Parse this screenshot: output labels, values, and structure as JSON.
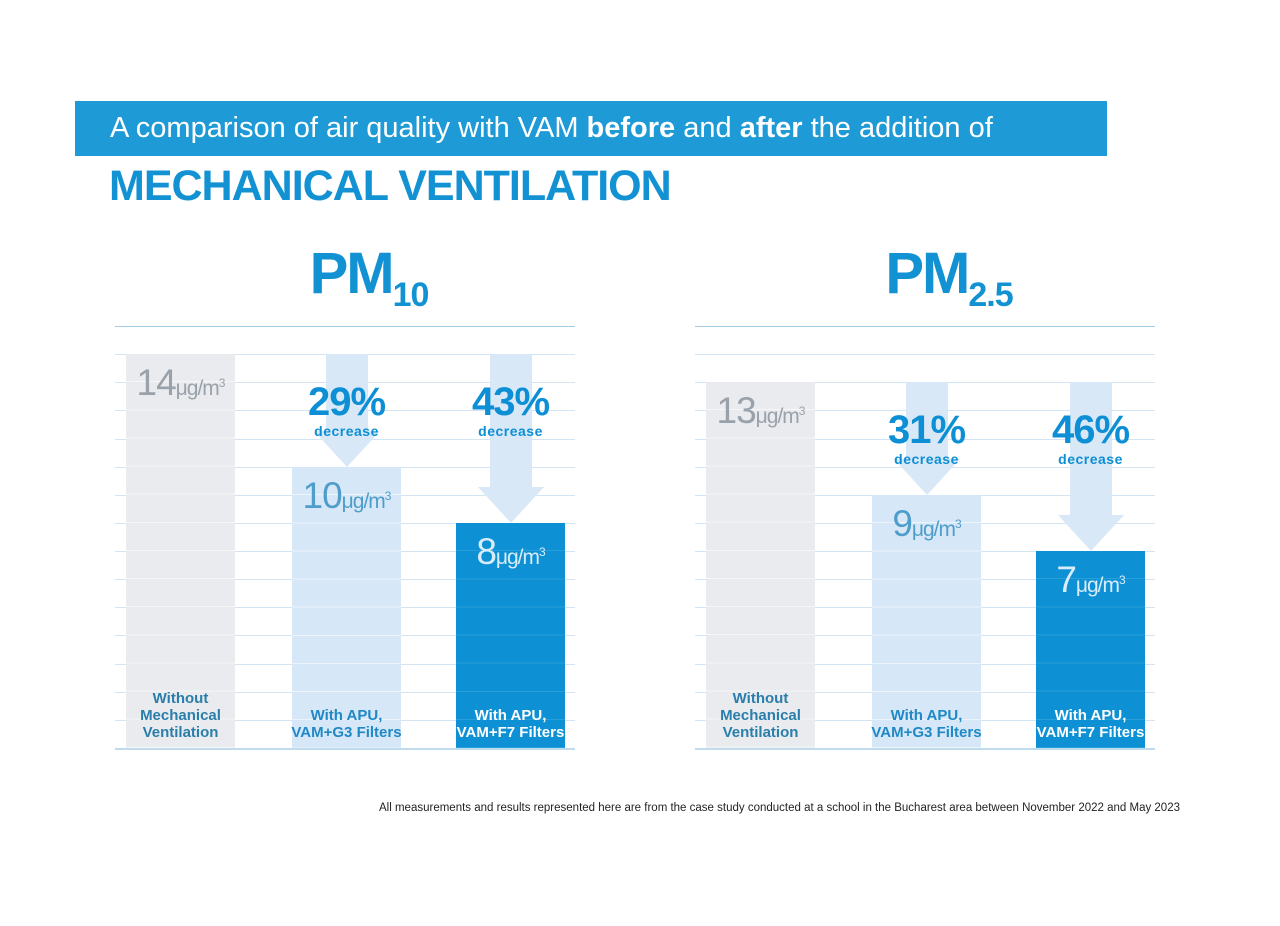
{
  "banner": {
    "part1": "A comparison of air quality with VAM ",
    "bold1": "before",
    "part2": " and ",
    "bold2": "after",
    "part3": " the addition of"
  },
  "heading": "MECHANICAL VENTILATION",
  "footnote": "All measurements and results represented here are from the case study conducted at a school in the Bucharest area between November 2022 and May 2023",
  "palette": {
    "banner_blue": "#1E9AD6",
    "heading_blue": "#1292D3",
    "pct_blue": "#0C8FD4",
    "arrow_blue": "#D9E8F7",
    "grid_line": "#D3E5F4",
    "grid_strong": "#A7CAE3",
    "grid_base": "#BFDCEF"
  },
  "chart_data": [
    {
      "type": "bar",
      "title": "PM",
      "title_sub": "10",
      "ylim": [
        0,
        15
      ],
      "grid": true,
      "unit": {
        "base": "μg/m",
        "sup": "3"
      },
      "categories": [
        [
          "Without",
          "Mechanical",
          "Ventilation"
        ],
        [
          "With APU,",
          "VAM+G3 Filters"
        ],
        [
          "With APU,",
          "VAM+F7 Filters"
        ]
      ],
      "values": [
        14,
        10,
        8
      ],
      "bar_colors": [
        "#E9EBEE",
        "#D6E8F7",
        "#0D91D4"
      ],
      "value_colors": [
        "#99A1AA",
        "#4F9DCB",
        "#D8ECFA"
      ],
      "category_colors": [
        "#2A7EAC",
        "#1F88C5",
        "#FFFFFF"
      ],
      "decreases": [
        {
          "label": "29%",
          "word": "decrease",
          "from_bar": 0,
          "to_bar": 1
        },
        {
          "label": "43%",
          "word": "decrease",
          "from_bar": 0,
          "to_bar": 2
        }
      ]
    },
    {
      "type": "bar",
      "title": "PM",
      "title_sub": "2.5",
      "ylim": [
        0,
        15
      ],
      "grid": true,
      "unit": {
        "base": "μg/m",
        "sup": "3"
      },
      "categories": [
        [
          "Without",
          "Mechanical",
          "Ventilation"
        ],
        [
          "With APU,",
          "VAM+G3 Filters"
        ],
        [
          "With APU,",
          "VAM+F7 Filters"
        ]
      ],
      "values": [
        13,
        9,
        7
      ],
      "bar_colors": [
        "#E9EBEE",
        "#D6E8F7",
        "#0D91D4"
      ],
      "value_colors": [
        "#99A1AA",
        "#4F9DCB",
        "#D8ECFA"
      ],
      "category_colors": [
        "#2A7EAC",
        "#1F88C5",
        "#FFFFFF"
      ],
      "decreases": [
        {
          "label": "31%",
          "word": "decrease",
          "from_bar": 0,
          "to_bar": 1
        },
        {
          "label": "46%",
          "word": "decrease",
          "from_bar": 0,
          "to_bar": 2
        }
      ]
    }
  ]
}
